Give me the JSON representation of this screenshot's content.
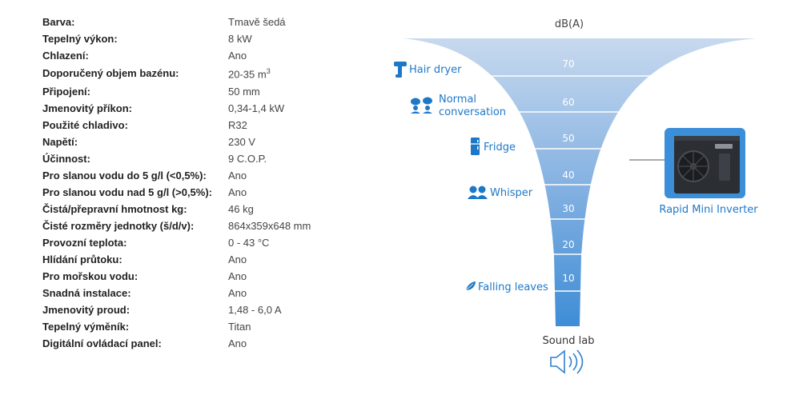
{
  "specs": [
    {
      "label": "Barva:",
      "value": "Tmavě šedá"
    },
    {
      "label": "Tepelný výkon:",
      "value": "8 kW"
    },
    {
      "label": "Chlazení:",
      "value": "Ano"
    },
    {
      "label": "Doporučený objem bazénu:",
      "value": "20-35 m",
      "sup": "3"
    },
    {
      "label": "Připojení:",
      "value": "50 mm"
    },
    {
      "label": "Jmenovitý příkon:",
      "value": "0,34-1,4 kW"
    },
    {
      "label": "Použité chladivo:",
      "value": "R32"
    },
    {
      "label": "Napětí:",
      "value": "230 V"
    },
    {
      "label": "Účinnost:",
      "value": "9 C.O.P."
    },
    {
      "label": "Pro slanou vodu do 5 g/l (<0,5%):",
      "value": "Ano"
    },
    {
      "label": "Pro slanou vodu nad 5 g/l (>0,5%):",
      "value": "Ano"
    },
    {
      "label": "Čistá/přepravní hmotnost kg:",
      "value": "46 kg"
    },
    {
      "label": "Čisté rozměry jednotky (š/d/v):",
      "value": "864x359x648 mm"
    },
    {
      "label": "Provozní teplota:",
      "value": "0 - 43 °C"
    },
    {
      "label": "Hlídání průtoku:",
      "value": "Ano"
    },
    {
      "label": "Pro mořskou vodu:",
      "value": "Ano"
    },
    {
      "label": "Snadná instalace:",
      "value": "Ano"
    },
    {
      "label": "Jmenovitý proud:",
      "value": "1,48 - 6,0 A"
    },
    {
      "label": "Tepelný výměník:",
      "value": "Titan"
    },
    {
      "label": "Digitální ovládací panel:",
      "value": "Ano"
    }
  ],
  "funnel": {
    "unit_label": "dB(A)",
    "levels": [
      "70",
      "60",
      "50",
      "40",
      "30",
      "20",
      "10"
    ],
    "references": [
      {
        "label": "Hair dryer",
        "icon": "hair-dryer-icon"
      },
      {
        "label": "Normal conversation",
        "lines": [
          "Normal",
          "conversation"
        ],
        "icon": "people-icon"
      },
      {
        "label": "Fridge",
        "icon": "fridge-icon"
      },
      {
        "label": "Whisper",
        "icon": "whisper-icon"
      },
      {
        "label": "Falling leaves",
        "icon": "leaf-icon"
      }
    ],
    "product_label": "Rapid Mini Inverter",
    "sound_lab_label": "Sound lab",
    "colors": {
      "funnel_top": "#c7d9ee",
      "funnel_bottom": "#3f8dd6",
      "label_blue": "#1e78c8",
      "line": "#ffffff"
    }
  }
}
